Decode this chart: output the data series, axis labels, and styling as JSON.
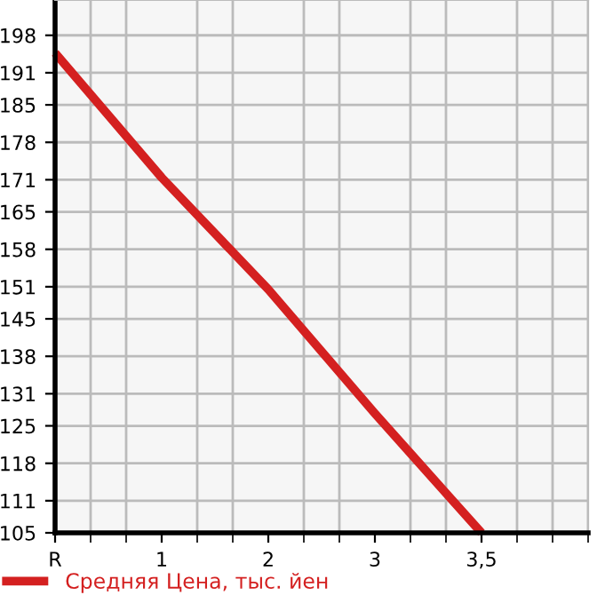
{
  "chart_data": {
    "type": "line",
    "categories": [
      "R",
      "1",
      "2",
      "3",
      "3,5"
    ],
    "series": [
      {
        "name": "Средняя Цена, тыс. йен",
        "color": "#d42020",
        "values": [
          194.7,
          171.4,
          150.5,
          127.3,
          105
        ]
      }
    ],
    "ylim": [
      105,
      204.6
    ],
    "yticks": [
      105,
      111,
      118,
      125,
      131,
      138,
      145,
      151,
      158,
      165,
      171,
      178,
      185,
      191,
      198
    ],
    "grid": true,
    "legend": "bottom",
    "marker": "none",
    "line_style": "solid"
  }
}
